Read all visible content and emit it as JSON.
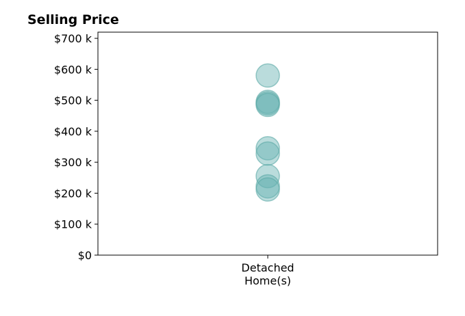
{
  "chart_data": {
    "type": "scatter",
    "title": "Selling Price",
    "xlabel": "",
    "ylabel": "",
    "categories": [
      "Detached",
      "Home(s)"
    ],
    "category_label_lines": [
      "Detached",
      "Home(s)"
    ],
    "ylim": [
      0,
      720000
    ],
    "yticks": [
      0,
      100000,
      200000,
      300000,
      400000,
      500000,
      600000,
      700000
    ],
    "ytick_labels": [
      "$0",
      "$100 k",
      "$200 k",
      "$300 k",
      "$400 k",
      "$500 k",
      "$600 k",
      "$700 k"
    ],
    "grid": false,
    "marker_color": "#66b2b2",
    "marker_edge_color": "#5aa8a5",
    "series": [
      {
        "category": "Detached Home(s)",
        "values": [
          580000,
          495000,
          490000,
          485000,
          345000,
          328000,
          255000,
          222000,
          212000
        ]
      }
    ]
  }
}
